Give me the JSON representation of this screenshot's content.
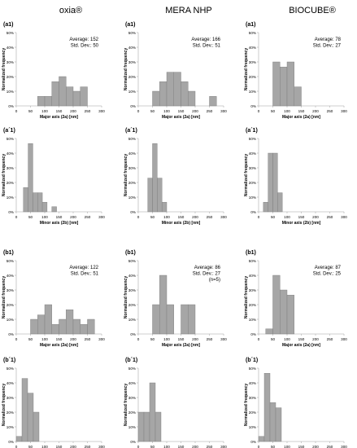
{
  "column_titles": [
    "oxia®",
    "MERA NHP",
    "BIOCUBE®"
  ],
  "colors": {
    "bar": "#a6a6a6",
    "bar_edge": "#7a7a7a",
    "axis": "#bfbfbf",
    "text": "#000000"
  },
  "chart_data": [
    {
      "type": "bar",
      "panel_label": "(a1)",
      "xlabel": "Major axis (2a) [nm]",
      "ylabel": "Normalized frequency",
      "bin_width": 25,
      "xlim": [
        0,
        300
      ],
      "ylim": [
        0,
        50
      ],
      "xticks": [
        0,
        50,
        100,
        150,
        200,
        250,
        300
      ],
      "yticks": [
        "0%",
        "10%",
        "20%",
        "30%",
        "40%",
        "50%"
      ],
      "bins": [
        75,
        100,
        125,
        150,
        175,
        200,
        225,
        250
      ],
      "values": [
        6.5,
        6.5,
        16.5,
        20,
        13,
        10,
        13,
        0
      ],
      "stats": [
        "Average: 152",
        "Std. Dev.: 50"
      ]
    },
    {
      "type": "bar",
      "panel_label": "(a1)",
      "xlabel": "Major axis (2a) [nm]",
      "ylabel": "Normalized frequency",
      "bin_width": 25,
      "xlim": [
        0,
        300
      ],
      "ylim": [
        0,
        50
      ],
      "xticks": [
        0,
        50,
        100,
        150,
        200,
        250,
        300
      ],
      "yticks": [
        "0%",
        "10%",
        "20%",
        "30%",
        "40%",
        "50%"
      ],
      "bins": [
        50,
        75,
        100,
        125,
        150,
        175,
        250
      ],
      "values": [
        10,
        16.5,
        23,
        23,
        16.5,
        10,
        6.5
      ],
      "stats": [
        "Average: 166",
        "Std. Dev.: 51"
      ]
    },
    {
      "type": "bar",
      "panel_label": "(a1)",
      "xlabel": "Major axis (2a) [nm]",
      "ylabel": "Normalized frequency",
      "bin_width": 25,
      "xlim": [
        0,
        300
      ],
      "ylim": [
        0,
        50
      ],
      "xticks": [
        0,
        50,
        100,
        150,
        200,
        250,
        300
      ],
      "yticks": [
        "0%",
        "10%",
        "20%",
        "30%",
        "40%",
        "50%"
      ],
      "bins": [
        50,
        75,
        100,
        125
      ],
      "values": [
        30,
        26.5,
        30,
        13
      ],
      "stats": [
        "Average: 78",
        "Std. Dev.: 27"
      ]
    },
    {
      "type": "bar",
      "panel_label": "(a´1)",
      "xlabel": "Minor axis (2b) [nm]",
      "ylabel": "Normalized frequency",
      "bin_width": 16.67,
      "xlim": [
        0,
        300
      ],
      "ylim": [
        0,
        50
      ],
      "xticks": [
        0,
        50,
        100,
        150,
        200,
        250,
        300
      ],
      "yticks": [
        "0%",
        "10%",
        "20%",
        "30%",
        "40%",
        "50%"
      ],
      "bins": [
        25,
        41.67,
        58.33,
        75,
        91.67,
        108.33,
        125,
        141.67
      ],
      "values": [
        16.5,
        46.5,
        13,
        13,
        6.5,
        0,
        3.5,
        0
      ],
      "stats": []
    },
    {
      "type": "bar",
      "panel_label": "(a´1)",
      "xlabel": "Minor axis (2b) [nm]",
      "ylabel": "Normalized frequency",
      "bin_width": 16.67,
      "xlim": [
        0,
        300
      ],
      "ylim": [
        0,
        50
      ],
      "xticks": [
        0,
        50,
        100,
        150,
        200,
        250,
        300
      ],
      "yticks": [
        "0%",
        "10%",
        "20%",
        "30%",
        "40%",
        "50%"
      ],
      "bins": [
        33.33,
        50,
        66.67,
        83.33
      ],
      "values": [
        23,
        46.5,
        23,
        6.5
      ],
      "stats": []
    },
    {
      "type": "bar",
      "panel_label": "(a´1)",
      "xlabel": "Minor axis (2b) [nm]",
      "ylabel": "Normalized frequency",
      "bin_width": 16.67,
      "xlim": [
        0,
        300
      ],
      "ylim": [
        0,
        50
      ],
      "xticks": [
        0,
        50,
        100,
        150,
        200,
        250,
        300
      ],
      "yticks": [
        "0%",
        "10%",
        "20%",
        "30%",
        "40%",
        "50%"
      ],
      "bins": [
        16.67,
        33.33,
        50,
        66.67,
        83.33
      ],
      "values": [
        6.5,
        40,
        40,
        13,
        0
      ],
      "stats": []
    },
    {
      "type": "bar",
      "panel_label": "(b1)",
      "xlabel": "Major axis (2a) [nm]",
      "ylabel": "Normalized frequency",
      "bin_width": 25,
      "xlim": [
        0,
        300
      ],
      "ylim": [
        0,
        50
      ],
      "xticks": [
        0,
        50,
        100,
        150,
        200,
        250,
        300
      ],
      "yticks": [
        "0%",
        "10%",
        "20%",
        "30%",
        "40%",
        "50%"
      ],
      "bins": [
        50,
        75,
        100,
        125,
        150,
        175,
        200,
        225,
        250
      ],
      "values": [
        10,
        13,
        20,
        6.5,
        10,
        16.5,
        10,
        6.5,
        10
      ],
      "stats": [
        "Average: 122",
        "Std. Dev.: 51"
      ]
    },
    {
      "type": "bar",
      "panel_label": "(b1)",
      "xlabel": "Major axis (2a) [nm]",
      "ylabel": "Normalized frequency",
      "bin_width": 25,
      "xlim": [
        0,
        300
      ],
      "ylim": [
        0,
        50
      ],
      "xticks": [
        0,
        50,
        100,
        150,
        200,
        250,
        300
      ],
      "yticks": [
        "0%",
        "10%",
        "20%",
        "30%",
        "40%",
        "50%"
      ],
      "bins": [
        50,
        75,
        100,
        125,
        150,
        175
      ],
      "values": [
        20,
        40,
        20,
        0,
        20,
        20
      ],
      "stats": [
        "Average: 86",
        "Std. Dev.: 27",
        "(n=5)"
      ]
    },
    {
      "type": "bar",
      "panel_label": "(b1)",
      "xlabel": "Major axis (2a) [nm]",
      "ylabel": "Normalized frequency",
      "bin_width": 25,
      "xlim": [
        0,
        300
      ],
      "ylim": [
        0,
        50
      ],
      "xticks": [
        0,
        50,
        100,
        150,
        200,
        250,
        300
      ],
      "yticks": [
        "0%",
        "10%",
        "20%",
        "30%",
        "40%",
        "50%"
      ],
      "bins": [
        25,
        50,
        75,
        100
      ],
      "values": [
        3.5,
        40,
        30,
        26.5
      ],
      "stats": [
        "Average: 87",
        "Std. Dev.: 25"
      ]
    },
    {
      "type": "bar",
      "panel_label": "(b´1)",
      "xlabel": "Minor axis (2b) [nm]",
      "ylabel": "Normalized frequency",
      "bin_width": 20,
      "xlim": [
        0,
        300
      ],
      "ylim": [
        0,
        50
      ],
      "xticks": [
        0,
        50,
        100,
        150,
        200,
        250,
        300
      ],
      "yticks": [
        "0%",
        "10%",
        "20%",
        "30%",
        "40%",
        "50%"
      ],
      "bins": [
        0,
        20,
        40,
        60
      ],
      "values": [
        3.5,
        43,
        33,
        20
      ],
      "stats": []
    },
    {
      "type": "bar",
      "panel_label": "(b´1)",
      "xlabel": "Minor axis (2b) [nm]",
      "ylabel": "Normalized frequency",
      "bin_width": 20,
      "xlim": [
        0,
        300
      ],
      "ylim": [
        0,
        50
      ],
      "xticks": [
        0,
        50,
        100,
        150,
        200,
        250,
        300
      ],
      "yticks": [
        "0%",
        "10%",
        "20%",
        "30%",
        "40%",
        "50%"
      ],
      "bins": [
        0,
        20,
        40,
        60
      ],
      "values": [
        20,
        20,
        40,
        20
      ],
      "stats": []
    },
    {
      "type": "bar",
      "panel_label": "(b´1)",
      "xlabel": "Minor axis (2b) [nm]",
      "ylabel": "Normalized frequency",
      "bin_width": 20,
      "xlim": [
        0,
        300
      ],
      "ylim": [
        0,
        50
      ],
      "xticks": [
        0,
        50,
        100,
        150,
        200,
        250,
        300
      ],
      "yticks": [
        "0%",
        "10%",
        "20%",
        "30%",
        "40%",
        "50%"
      ],
      "bins": [
        0,
        20,
        40,
        60
      ],
      "values": [
        3.5,
        46.5,
        26.5,
        23
      ],
      "stats": []
    }
  ]
}
